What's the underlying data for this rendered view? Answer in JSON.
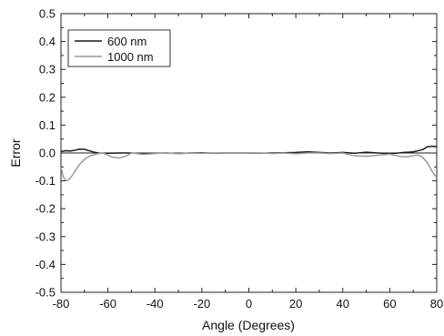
{
  "chart_data": {
    "type": "line",
    "title": "",
    "xlabel": "Angle (Degrees)",
    "ylabel": "Error",
    "xlim": [
      -80,
      80
    ],
    "ylim": [
      -0.5,
      0.5
    ],
    "xticks": [
      -80,
      -60,
      -40,
      -20,
      0,
      20,
      40,
      60,
      80
    ],
    "yticks": [
      -0.5,
      -0.4,
      -0.3,
      -0.2,
      -0.1,
      0.0,
      0.1,
      0.2,
      0.3,
      0.4,
      0.5
    ],
    "xtick_labels": [
      "-80",
      "-60",
      "-40",
      "-20",
      "0",
      "20",
      "40",
      "60",
      "80"
    ],
    "ytick_labels": [
      "-0.5",
      "-0.4",
      "-0.3",
      "-0.2",
      "-0.1",
      "0.0",
      "0.1",
      "0.2",
      "0.3",
      "0.4",
      "0.5"
    ],
    "grid": false,
    "legend_position": "top-left",
    "series": [
      {
        "name": "600 nm",
        "color": "#1a1a1a",
        "x": [
          -80,
          -78,
          -76,
          -74,
          -72,
          -70,
          -68,
          -66,
          -64,
          -60,
          -55,
          -50,
          -45,
          -40,
          -35,
          -30,
          -25,
          -20,
          -15,
          -10,
          -5,
          0,
          5,
          10,
          15,
          20,
          25,
          30,
          35,
          40,
          45,
          50,
          55,
          60,
          64,
          66,
          68,
          70,
          72,
          74,
          76,
          78,
          80
        ],
        "y": [
          0.005,
          0.008,
          0.007,
          0.01,
          0.014,
          0.013,
          0.008,
          0.003,
          0.0,
          -0.001,
          0.0,
          0.0,
          -0.003,
          -0.001,
          0.0,
          -0.002,
          0.0,
          0.001,
          -0.001,
          0.0,
          0.0,
          0.0,
          -0.001,
          0.0,
          0.001,
          0.002,
          0.004,
          0.002,
          0.0,
          0.002,
          -0.001,
          0.003,
          0.0,
          -0.002,
          0.0,
          0.002,
          0.003,
          0.004,
          0.008,
          0.012,
          0.022,
          0.024,
          0.023
        ]
      },
      {
        "name": "1000 nm",
        "color": "#9a9a9a",
        "x": [
          -80,
          -79,
          -78,
          -77,
          -76,
          -75,
          -74,
          -73,
          -72,
          -70,
          -68,
          -66,
          -64,
          -62,
          -60,
          -58,
          -55,
          -52,
          -50,
          -45,
          -40,
          -35,
          -30,
          -25,
          -20,
          -15,
          -10,
          -5,
          0,
          5,
          10,
          15,
          20,
          25,
          30,
          35,
          40,
          45,
          50,
          55,
          60,
          64,
          66,
          68,
          70,
          72,
          74,
          75,
          76,
          77,
          78,
          79,
          80
        ],
        "y": [
          -0.05,
          -0.085,
          -0.1,
          -0.098,
          -0.09,
          -0.078,
          -0.065,
          -0.052,
          -0.04,
          -0.023,
          -0.012,
          -0.006,
          -0.002,
          0.0,
          -0.008,
          -0.015,
          -0.018,
          -0.01,
          0.0,
          -0.005,
          -0.002,
          0.0,
          -0.003,
          0.0,
          -0.001,
          0.0,
          0.0,
          0.0,
          0.0,
          0.0,
          -0.002,
          0.0,
          -0.003,
          0.0,
          0.0,
          -0.002,
          0.0,
          -0.01,
          -0.012,
          -0.008,
          -0.004,
          -0.012,
          -0.014,
          -0.013,
          -0.01,
          -0.007,
          -0.015,
          -0.025,
          -0.035,
          -0.05,
          -0.065,
          -0.078,
          -0.088
        ]
      }
    ]
  }
}
